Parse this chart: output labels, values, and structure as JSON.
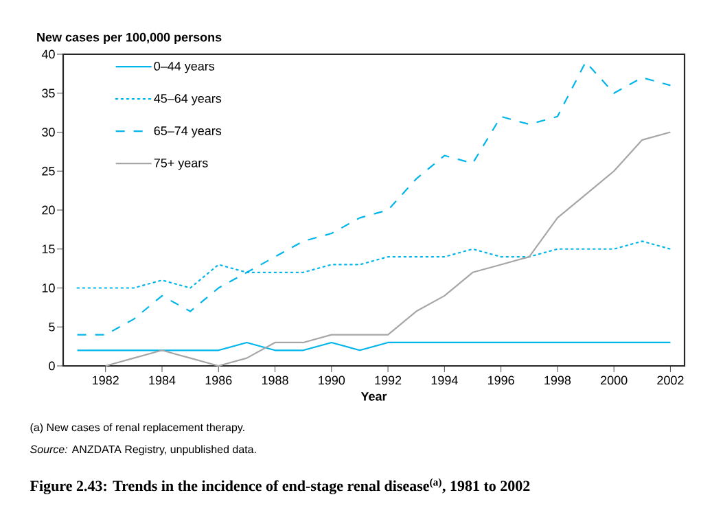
{
  "chart_data": {
    "type": "line",
    "title": "**Figure 2.43: Trends in the incidence of end-stage renal disease$^{(a)}$, 1981 to 2002**",
    "xlabel": "Year",
    "ylabel": "New cases per 100,000 persons",
    "annotations": [
      "(a)  New cases of renal replacement therapy.",
      "*Source:* ANZDATA Registry, unpublished data."
    ],
    "x": [
      1981,
      1982,
      1983,
      1984,
      1985,
      1986,
      1987,
      1988,
      1989,
      1990,
      1991,
      1992,
      1993,
      1994,
      1995,
      1996,
      1997,
      1998,
      1999,
      2000,
      2001,
      2002
    ],
    "xlim": [
      1980.5,
      2002.5
    ],
    "xticks": [
      1982,
      1984,
      1986,
      1988,
      1990,
      1992,
      1994,
      1996,
      1998,
      2000,
      2002
    ],
    "ylim": [
      0,
      40
    ],
    "yticks": [
      0,
      5,
      10,
      15,
      20,
      25,
      30,
      35,
      40
    ],
    "legend": "top left",
    "grid": false,
    "series": [
      {
        "name": "0–44 years",
        "color": "#00b5e9",
        "line_style": "solid",
        "values": [
          2,
          2,
          2,
          2,
          2,
          2,
          3,
          2,
          2,
          3,
          2,
          3,
          3,
          3,
          3,
          3,
          3,
          3,
          3,
          3,
          3,
          3
        ]
      },
      {
        "name": "45–64 years",
        "color": "#00b5e9",
        "line_style": "dotted",
        "values": [
          10,
          10,
          10,
          11,
          10,
          13,
          12,
          12,
          12,
          13,
          13,
          14,
          14,
          14,
          15,
          14,
          14,
          15,
          15,
          15,
          16,
          15
        ]
      },
      {
        "name": "65–74 years",
        "color": "#00b5e9",
        "line_style": "dashed",
        "values": [
          4,
          4,
          6,
          9,
          7,
          10,
          12,
          14,
          16,
          17,
          19,
          20,
          24,
          27,
          26,
          32,
          31,
          32,
          39,
          35,
          37,
          36
        ]
      },
      {
        "name": "75+ years",
        "color": "#a6a6a6",
        "line_style": "solid",
        "values": [
          null,
          0,
          1,
          2,
          1,
          0,
          1,
          3,
          3,
          4,
          4,
          4,
          7,
          9,
          12,
          13,
          14,
          19,
          22,
          25,
          29,
          30
        ]
      }
    ]
  }
}
